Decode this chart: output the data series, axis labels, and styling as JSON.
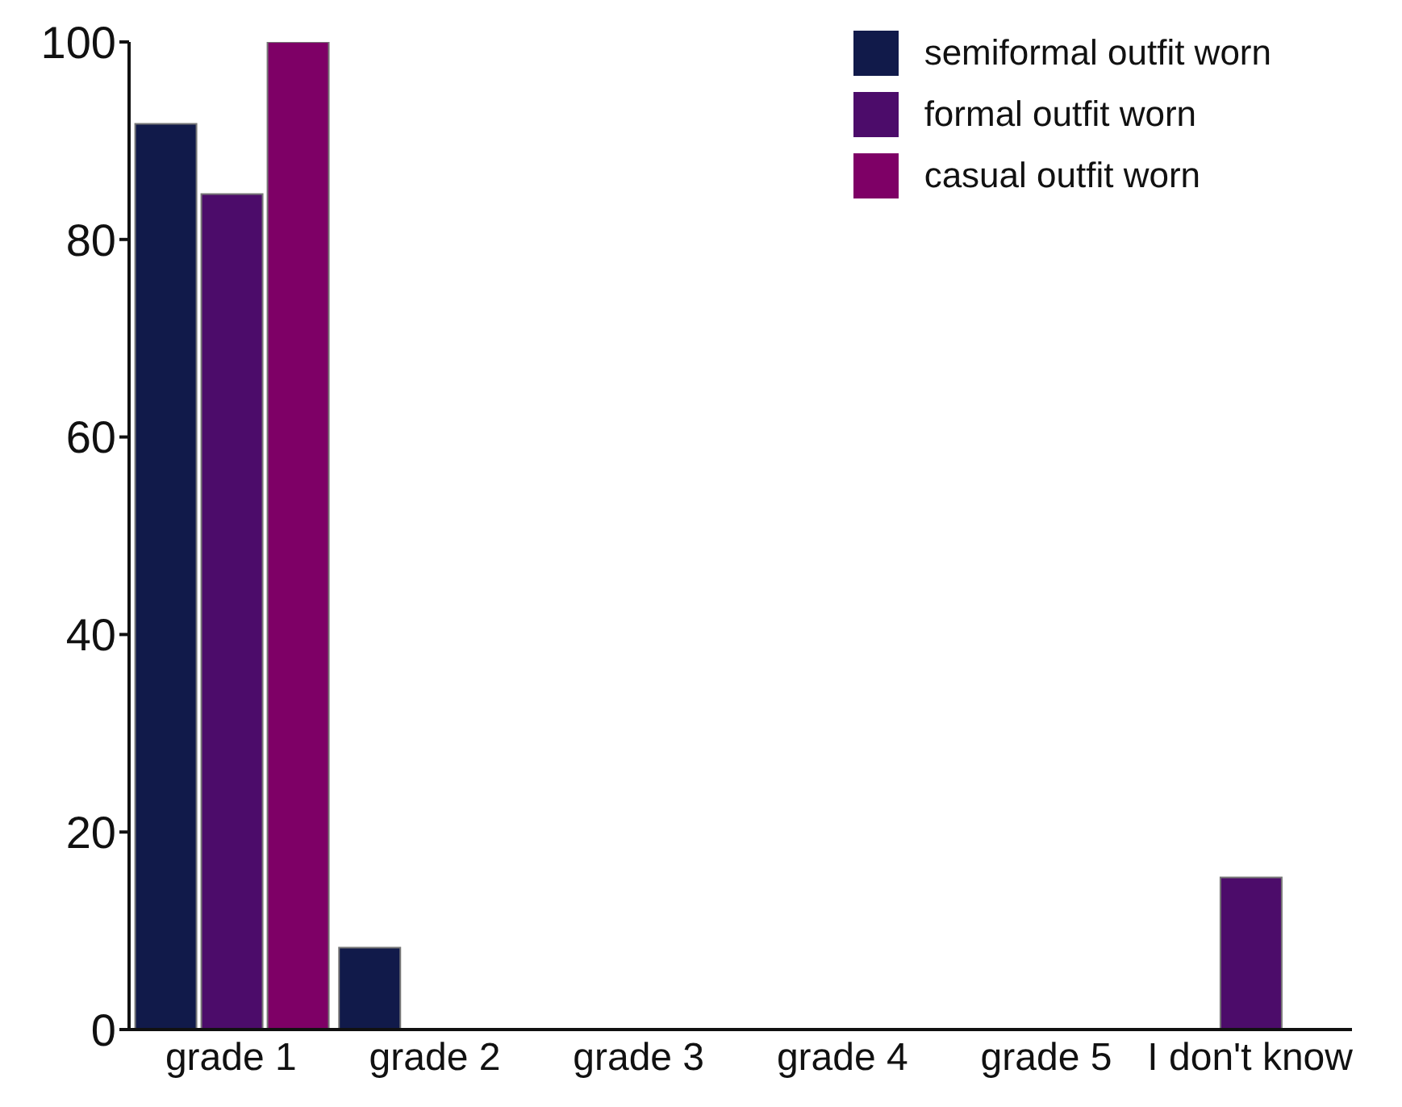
{
  "chart_data": {
    "type": "bar",
    "categories": [
      "grade 1",
      "grade 2",
      "grade 3",
      "grade 4",
      "grade 5",
      "I don't know"
    ],
    "series": [
      {
        "name": "semiformal outfit worn",
        "color": "#111a4a",
        "values": [
          91.7,
          8.3,
          0,
          0,
          0,
          0
        ]
      },
      {
        "name": "formal outfit worn",
        "color": "#4c0c6a",
        "values": [
          84.6,
          0,
          0,
          0,
          0,
          15.4
        ]
      },
      {
        "name": "casual outfit worn",
        "color": "#7e0066",
        "values": [
          100,
          0,
          0,
          0,
          0,
          0
        ]
      }
    ],
    "ylim": [
      0,
      100
    ],
    "yticks": [
      0,
      20,
      40,
      60,
      80,
      100
    ],
    "grid": false,
    "legend": "top right"
  }
}
